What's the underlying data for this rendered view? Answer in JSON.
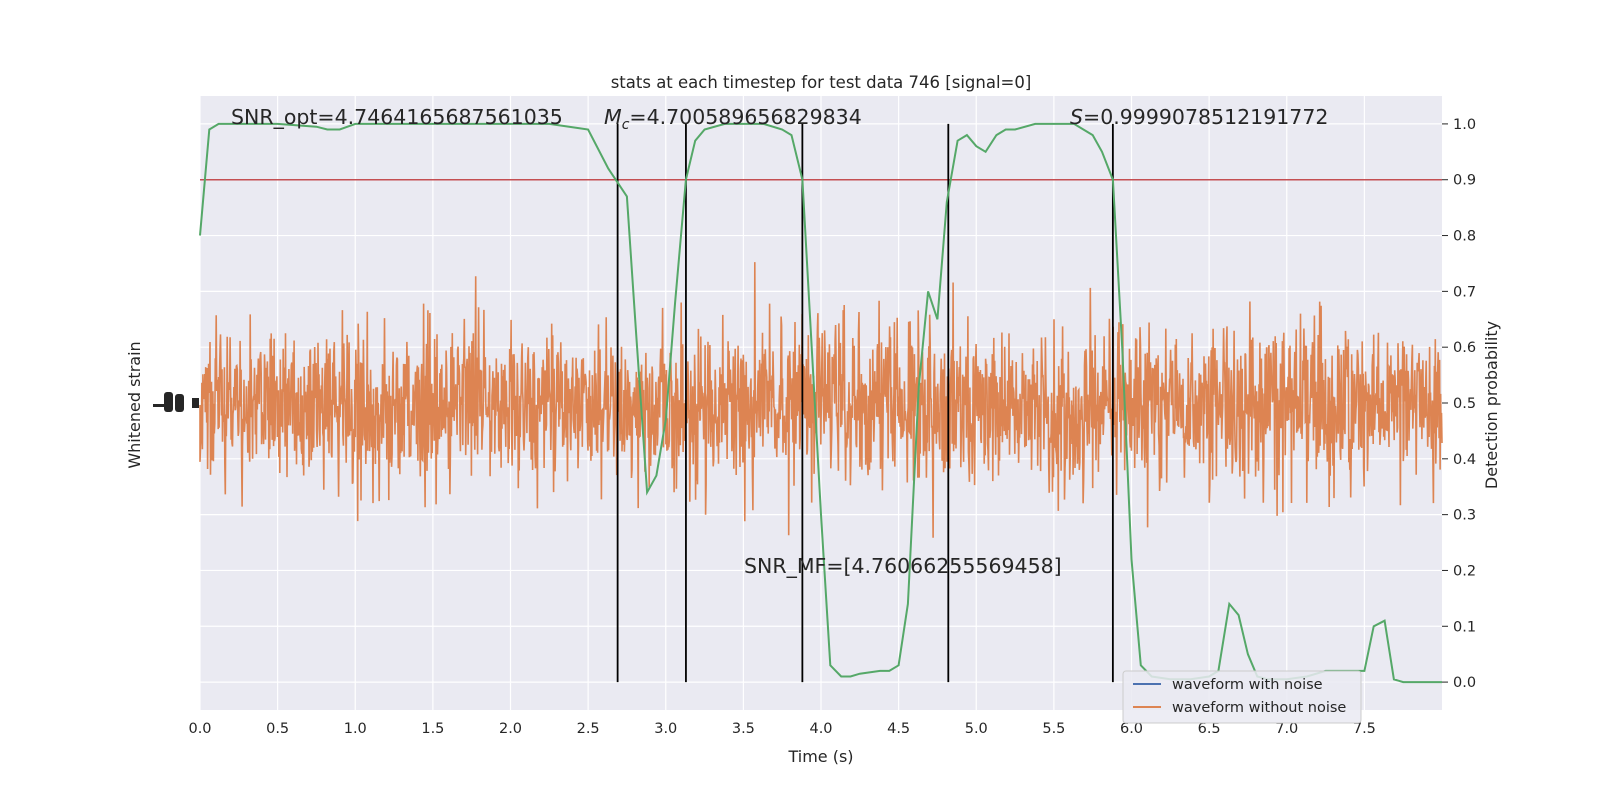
{
  "chart_data": {
    "type": "line",
    "title": "stats at each timestep for test data 746 [signal=0]",
    "xlabel": "Time (s)",
    "ylabel_left": "Whitened strain",
    "ylabel_right": "Detection probability",
    "xlim": [
      0,
      8.0
    ],
    "ylim_right": [
      -0.05,
      1.05
    ],
    "x_ticks": [
      "0.0",
      "0.5",
      "1.0",
      "1.5",
      "2.0",
      "2.5",
      "3.0",
      "3.5",
      "4.0",
      "4.5",
      "5.0",
      "5.5",
      "6.0",
      "6.5",
      "7.0",
      "7.5"
    ],
    "y_ticks_right": [
      "0.0",
      "0.1",
      "0.2",
      "0.3",
      "0.4",
      "0.5",
      "0.6",
      "0.7",
      "0.8",
      "0.9",
      "1.0"
    ],
    "threshold": 0.9,
    "annotations": {
      "snr_opt": "SNR_opt=4.7464165687561035",
      "mc_symbol": "M",
      "mc_sub": "c",
      "mc_value": "=4.700589656829834",
      "s_symbol": "S",
      "s_value": "=0.9999078512191772",
      "snr_mf": "SNR_MF=[4.76066255569458]"
    },
    "legend": [
      {
        "label": "waveform with noise",
        "color": "#4c72b0"
      },
      {
        "label": "waveform without noise",
        "color": "#dd8452"
      }
    ],
    "vlines": [
      2.69,
      3.13,
      3.88,
      4.82,
      5.88
    ],
    "detection_probability": {
      "name": "Detection probability",
      "color": "#55a868",
      "x": [
        0.0,
        0.06,
        0.12,
        0.25,
        0.5,
        0.75,
        0.82,
        0.9,
        1.0,
        1.25,
        1.5,
        1.75,
        2.0,
        2.25,
        2.5,
        2.63,
        2.75,
        2.81,
        2.88,
        2.94,
        3.0,
        3.06,
        3.13,
        3.19,
        3.25,
        3.38,
        3.5,
        3.63,
        3.75,
        3.81,
        3.88,
        3.94,
        4.0,
        4.06,
        4.13,
        4.19,
        4.25,
        4.38,
        4.44,
        4.5,
        4.56,
        4.63,
        4.69,
        4.75,
        4.81,
        4.88,
        4.94,
        5.0,
        5.06,
        5.13,
        5.19,
        5.25,
        5.38,
        5.5,
        5.63,
        5.75,
        5.81,
        5.88,
        5.94,
        6.0,
        6.06,
        6.13,
        6.25,
        6.38,
        6.5,
        6.56,
        6.63,
        6.69,
        6.75,
        6.81,
        6.88,
        7.0,
        7.13,
        7.25,
        7.38,
        7.5,
        7.56,
        7.63,
        7.69,
        7.75,
        7.88,
        8.0
      ],
      "values": [
        0.8,
        0.99,
        1.0,
        1.0,
        1.0,
        0.995,
        0.99,
        0.99,
        1.0,
        1.0,
        1.0,
        1.0,
        1.0,
        1.0,
        0.99,
        0.92,
        0.87,
        0.62,
        0.34,
        0.37,
        0.47,
        0.68,
        0.9,
        0.97,
        0.99,
        1.0,
        1.0,
        1.0,
        0.99,
        0.98,
        0.9,
        0.6,
        0.3,
        0.03,
        0.01,
        0.01,
        0.015,
        0.02,
        0.02,
        0.03,
        0.14,
        0.53,
        0.7,
        0.65,
        0.86,
        0.97,
        0.98,
        0.96,
        0.95,
        0.98,
        0.99,
        0.99,
        1.0,
        1.0,
        1.0,
        0.98,
        0.95,
        0.9,
        0.6,
        0.22,
        0.03,
        0.01,
        0.005,
        0.005,
        0.01,
        0.02,
        0.14,
        0.12,
        0.05,
        0.01,
        0.005,
        0.005,
        0.01,
        0.02,
        0.02,
        0.02,
        0.1,
        0.11,
        0.005,
        0.0,
        0.0,
        0.0
      ]
    }
  }
}
